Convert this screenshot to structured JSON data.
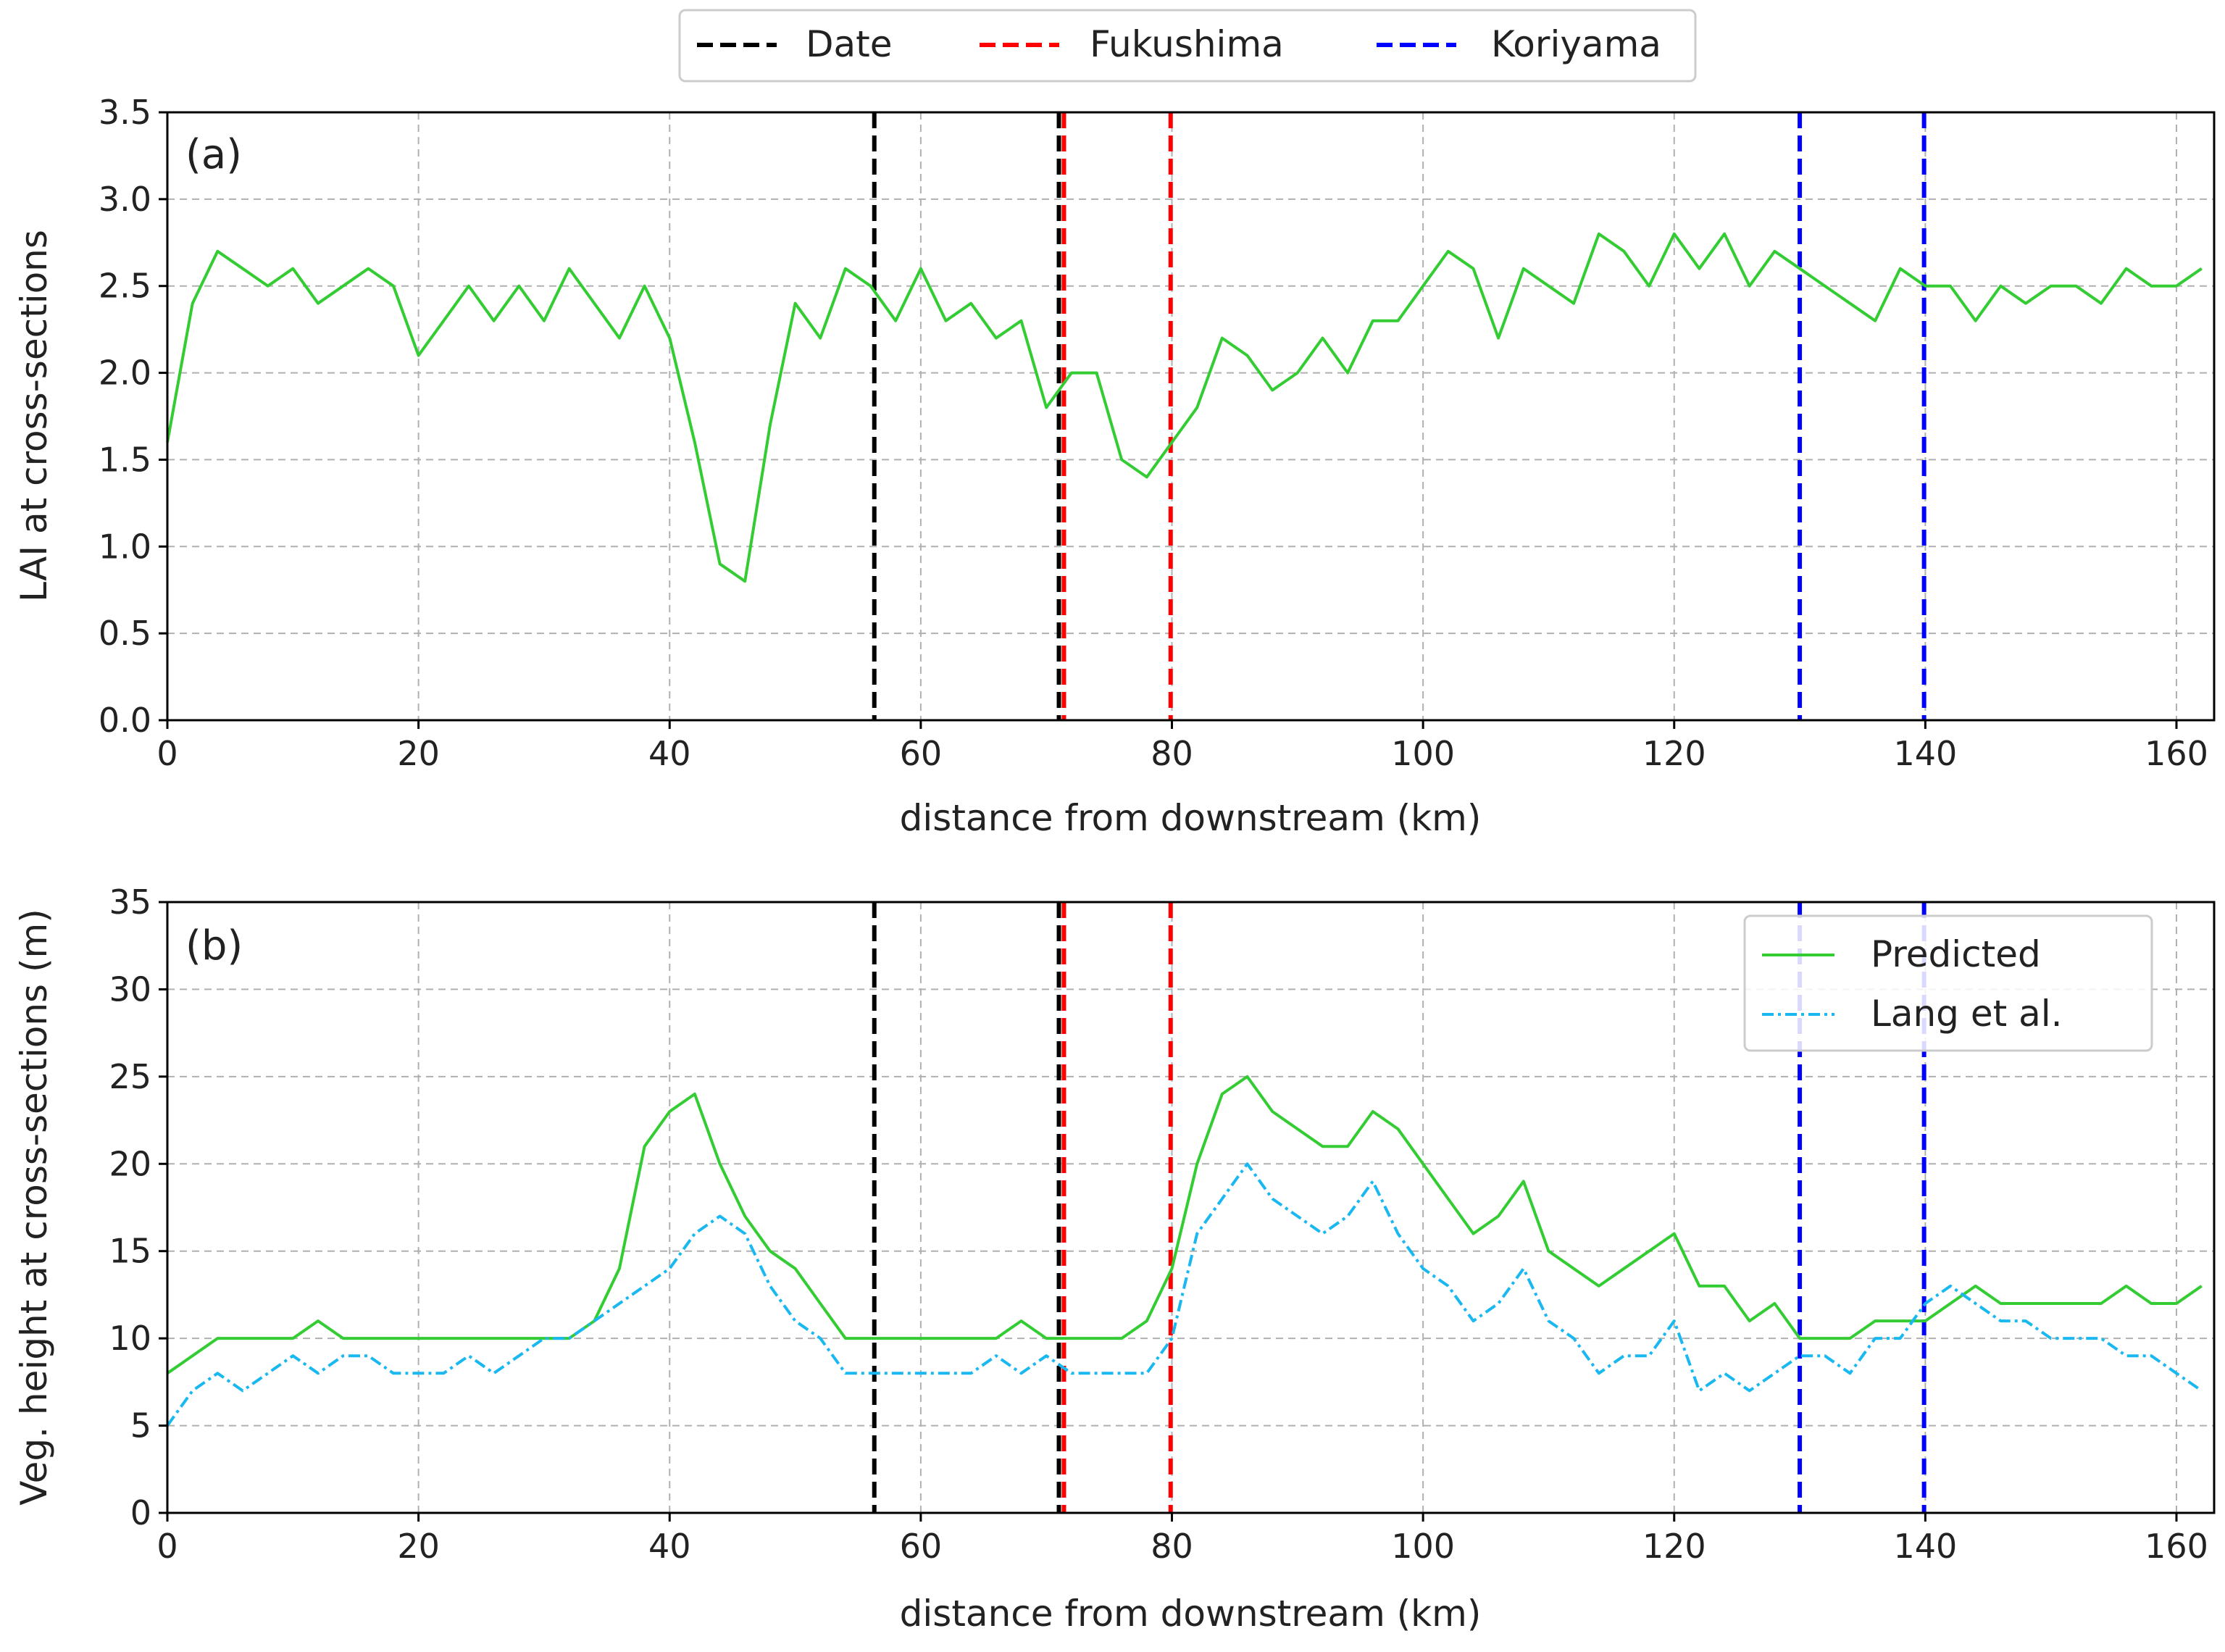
{
  "chart_data": {
    "legend_top": {
      "placement": "top-center",
      "items": [
        {
          "label": "Date",
          "color": "#000000",
          "style": "dashed"
        },
        {
          "label": "Fukushima",
          "color": "#ff0000",
          "style": "dashed"
        },
        {
          "label": "Koriyama",
          "color": "#0000ff",
          "style": "dashed"
        }
      ]
    },
    "vertical_markers": [
      {
        "x": 56.3,
        "group": "Date",
        "color": "#000000"
      },
      {
        "x": 71.0,
        "group": "Date",
        "color": "#000000"
      },
      {
        "x": 71.4,
        "group": "Fukushima",
        "color": "#ff0000"
      },
      {
        "x": 79.9,
        "group": "Fukushima",
        "color": "#ff0000"
      },
      {
        "x": 130.0,
        "group": "Koriyama",
        "color": "#0000ff"
      },
      {
        "x": 139.9,
        "group": "Koriyama",
        "color": "#0000ff"
      }
    ],
    "panels": [
      {
        "type": "line",
        "tag": "(a)",
        "xlabel": "distance from downstream (km)",
        "ylabel": "LAI at cross-sections",
        "xlim": [
          0,
          163
        ],
        "ylim": [
          0,
          3.5
        ],
        "xticks": [
          0,
          20,
          40,
          60,
          80,
          100,
          120,
          140,
          160
        ],
        "yticks": [
          0.0,
          0.5,
          1.0,
          1.5,
          2.0,
          2.5,
          3.0,
          3.5
        ],
        "ytick_labels": [
          "0.0",
          "0.5",
          "1.0",
          "1.5",
          "2.0",
          "2.5",
          "3.0",
          "3.5"
        ],
        "grid": true,
        "series": [
          {
            "name": "LAI",
            "color": "#33cc33",
            "style": "solid",
            "x_start": 0,
            "x_step": 2,
            "values": [
              1.6,
              2.4,
              2.7,
              2.6,
              2.5,
              2.6,
              2.4,
              2.5,
              2.6,
              2.5,
              2.1,
              2.3,
              2.5,
              2.3,
              2.5,
              2.3,
              2.6,
              2.4,
              2.2,
              2.5,
              2.2,
              1.6,
              0.9,
              0.8,
              1.7,
              2.4,
              2.2,
              2.6,
              2.5,
              2.3,
              2.6,
              2.3,
              2.4,
              2.2,
              2.3,
              1.8,
              2.0,
              2.0,
              1.5,
              1.4,
              1.6,
              1.8,
              2.2,
              2.1,
              1.9,
              2.0,
              2.2,
              2.0,
              2.3,
              2.3,
              2.5,
              2.7,
              2.6,
              2.2,
              2.6,
              2.5,
              2.4,
              2.8,
              2.7,
              2.5,
              2.8,
              2.6,
              2.8,
              2.5,
              2.7,
              2.6,
              2.5,
              2.4,
              2.3,
              2.6,
              2.5,
              2.5,
              2.3,
              2.5,
              2.4,
              2.5,
              2.5,
              2.4,
              2.6,
              2.5,
              2.5,
              2.6
            ]
          }
        ]
      },
      {
        "type": "line",
        "tag": "(b)",
        "xlabel": "distance from downstream (km)",
        "ylabel": "Veg. height at cross-sections (m)",
        "xlim": [
          0,
          163
        ],
        "ylim": [
          0,
          35
        ],
        "xticks": [
          0,
          20,
          40,
          60,
          80,
          100,
          120,
          140,
          160
        ],
        "yticks": [
          0,
          5,
          10,
          15,
          20,
          25,
          30,
          35
        ],
        "ytick_labels": [
          "0",
          "5",
          "10",
          "15",
          "20",
          "25",
          "30",
          "35"
        ],
        "grid": true,
        "legend": {
          "placement": "top-right",
          "items": [
            "Predicted",
            "Lang et al."
          ]
        },
        "series": [
          {
            "name": "Predicted",
            "color": "#33cc33",
            "style": "solid",
            "x_start": 0,
            "x_step": 2,
            "values": [
              8,
              9,
              10,
              10,
              10,
              10,
              11,
              10,
              10,
              10,
              10,
              10,
              10,
              10,
              10,
              10,
              10,
              11,
              14,
              21,
              23,
              24,
              20,
              17,
              15,
              14,
              12,
              10,
              10,
              10,
              10,
              10,
              10,
              10,
              11,
              10,
              10,
              10,
              10,
              11,
              14,
              20,
              24,
              25,
              23,
              22,
              21,
              21,
              23,
              22,
              20,
              18,
              16,
              17,
              19,
              15,
              14,
              13,
              14,
              15,
              16,
              13,
              13,
              11,
              12,
              10,
              10,
              10,
              11,
              11,
              11,
              12,
              13,
              12,
              12,
              12,
              12,
              12,
              13,
              12,
              12,
              13
            ]
          },
          {
            "name": "Lang et al.",
            "color": "#1ab8f0",
            "style": "dashdot",
            "x_start": 0,
            "x_step": 2,
            "values": [
              5,
              7,
              8,
              7,
              8,
              9,
              8,
              9,
              9,
              8,
              8,
              8,
              9,
              8,
              9,
              10,
              10,
              11,
              12,
              13,
              14,
              16,
              17,
              16,
              13,
              11,
              10,
              8,
              8,
              8,
              8,
              8,
              8,
              9,
              8,
              9,
              8,
              8,
              8,
              8,
              10,
              16,
              18,
              20,
              18,
              17,
              16,
              17,
              19,
              16,
              14,
              13,
              11,
              12,
              14,
              11,
              10,
              8,
              9,
              9,
              11,
              7,
              8,
              7,
              8,
              9,
              9,
              8,
              10,
              10,
              12,
              13,
              12,
              11,
              11,
              10,
              10,
              10,
              9,
              9,
              8,
              7
            ]
          }
        ]
      }
    ]
  }
}
